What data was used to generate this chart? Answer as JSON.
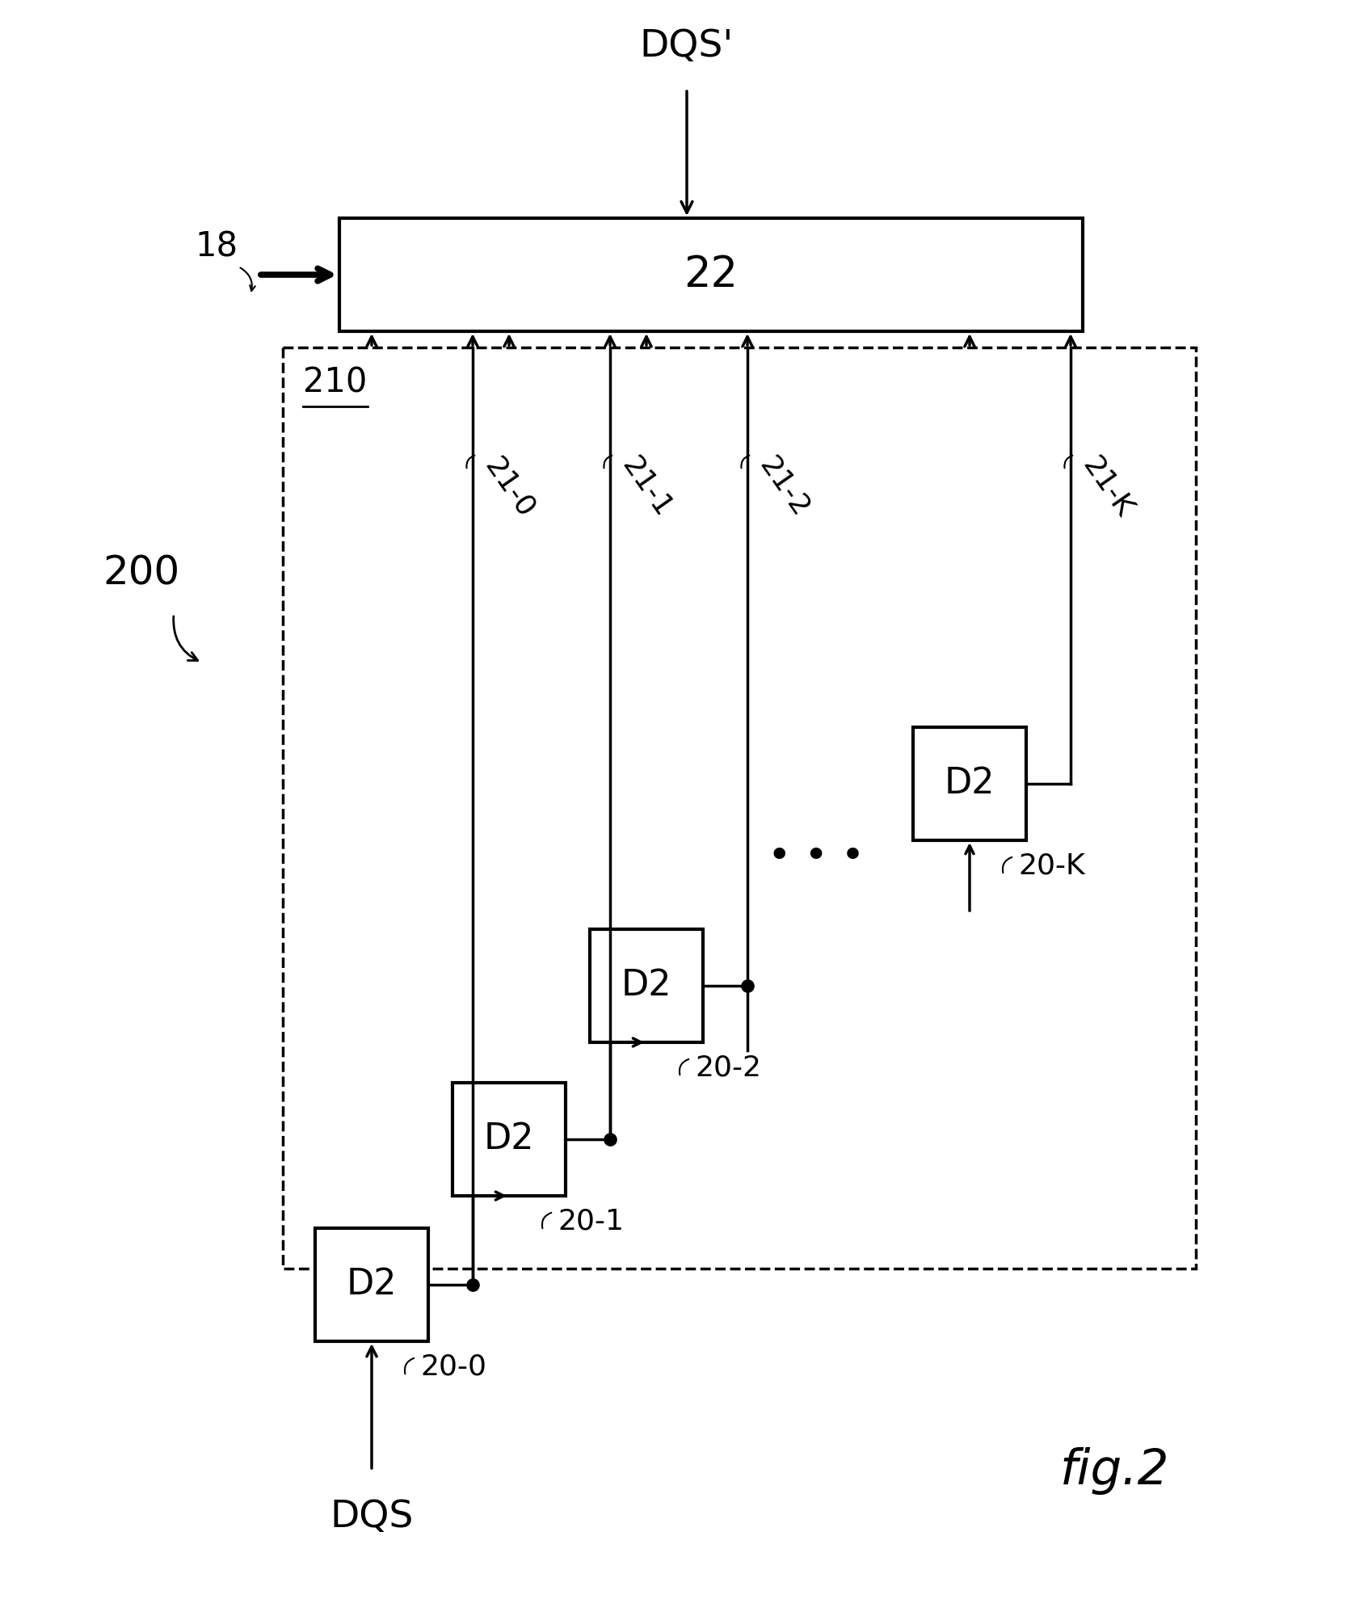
{
  "bg_color": "#ffffff",
  "fig_label": "fig.2",
  "main_label": "200",
  "dashed_box_label": "210",
  "box22_label": "22",
  "dqs_prime_label": "DQS'",
  "dqs_label": "DQS",
  "label18": "18",
  "d2_label": "D2",
  "dots": "• • •",
  "line_color": "#000000"
}
